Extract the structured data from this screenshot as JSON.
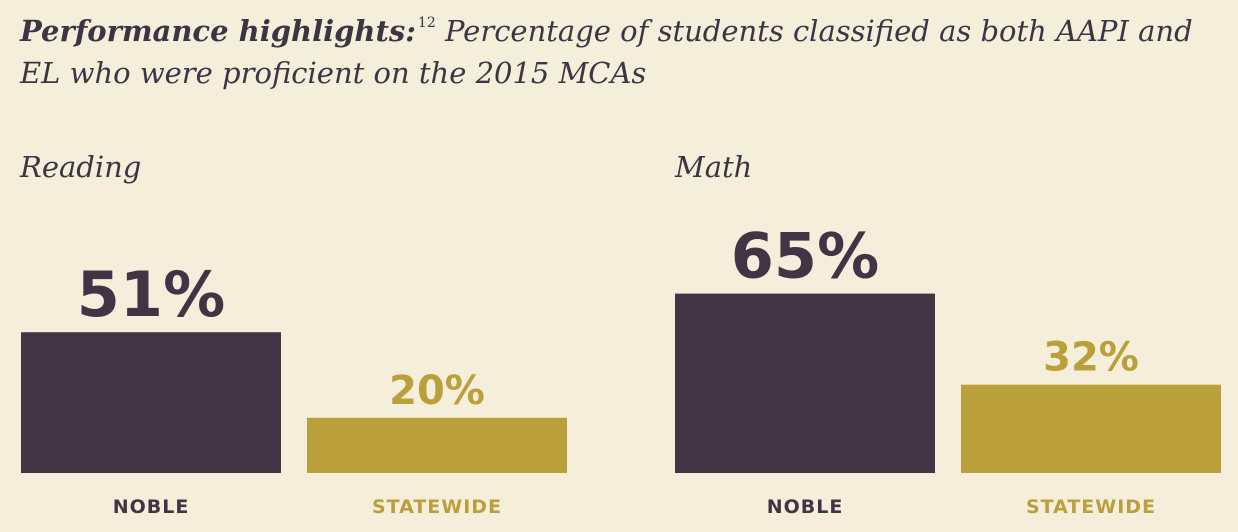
{
  "title": {
    "bold": "Performance highlights:",
    "footnote": "12",
    "rest": " Percentage of students classified as both AAPI and EL who were proficient on the 2015 MCAs"
  },
  "colors": {
    "background": "#f5eedb",
    "noble": "#413444",
    "statewide": "#baa03a"
  },
  "chart_data": [
    {
      "type": "bar",
      "title": "Reading",
      "categories": [
        "NOBLE",
        "STATEWIDE"
      ],
      "values": [
        51,
        20
      ],
      "value_labels": [
        "51%",
        "20%"
      ],
      "ylim": [
        0,
        100
      ],
      "grid": false
    },
    {
      "type": "bar",
      "title": "Math",
      "categories": [
        "NOBLE",
        "STATEWIDE"
      ],
      "values": [
        65,
        32
      ],
      "value_labels": [
        "65%",
        "32%"
      ],
      "ylim": [
        0,
        100
      ],
      "grid": false
    }
  ]
}
